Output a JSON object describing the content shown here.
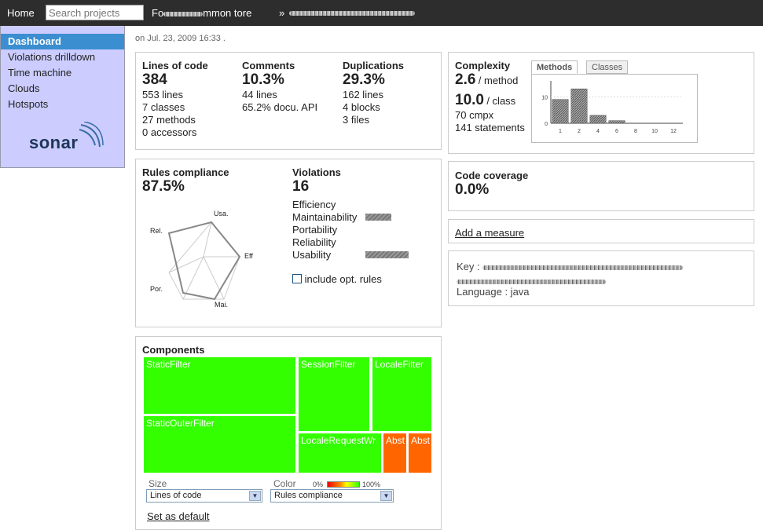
{
  "topbar": {
    "home": "Home",
    "search_placeholder": "Search projects",
    "breadcrumb_visible": "Fo",
    "breadcrumb_tail": "mmon tore",
    "separator": "»"
  },
  "sidebar": {
    "items": [
      {
        "label": "Dashboard",
        "active": true
      },
      {
        "label": "Violations drilldown"
      },
      {
        "label": "Time machine"
      },
      {
        "label": "Clouds"
      },
      {
        "label": "Hotspots"
      }
    ],
    "logo": "sonar"
  },
  "date": "on Jul. 23, 2009 16:33 .",
  "size": {
    "loc_title": "Lines of code",
    "loc_value": "384",
    "loc_lines": "553 lines",
    "loc_classes": "7 classes",
    "loc_methods": "27 methods",
    "loc_accessors": "0 accessors",
    "comments_title": "Comments",
    "comments_value": "10.3%",
    "comments_lines": "44 lines",
    "comments_api": "65.2% docu. API",
    "dup_title": "Duplications",
    "dup_value": "29.3%",
    "dup_lines": "162 lines",
    "dup_blocks": "4 blocks",
    "dup_files": "3 files"
  },
  "complexity": {
    "title": "Complexity",
    "per_method": "2.6",
    "per_method_unit": "/ method",
    "per_class": "10.0",
    "per_class_unit": "/ class",
    "cmpx": "70 cmpx",
    "statements": "141 statements",
    "tabs": [
      "Methods",
      "Classes"
    ],
    "accent_hatch": "#888888"
  },
  "chart_data": {
    "type": "bar",
    "categories": [
      "1",
      "2",
      "4",
      "6",
      "8",
      "10",
      "12"
    ],
    "values": [
      9,
      13,
      3,
      1,
      0,
      0,
      0
    ],
    "ylabel": "",
    "xlabel": "",
    "yticks": [
      "0",
      "10"
    ],
    "ylim": [
      0,
      16
    ]
  },
  "coverage": {
    "title": "Code coverage",
    "value": "0.0%"
  },
  "add_measure": "Add a measure",
  "project_info": {
    "key_label": "Key :",
    "language_label": "Language : java"
  },
  "rules": {
    "title": "Rules compliance",
    "value": "87.5%",
    "radar_labels": [
      "Usa.",
      "Eff",
      "Mai.",
      "Por.",
      "Rel."
    ]
  },
  "violations": {
    "title": "Violations",
    "value": "16",
    "categories": [
      {
        "label": "Efficiency",
        "count": 0
      },
      {
        "label": "Maintainability",
        "count": 4
      },
      {
        "label": "Portability",
        "count": 0
      },
      {
        "label": "Reliability",
        "count": 0
      },
      {
        "label": "Usability",
        "count": 7
      }
    ],
    "include_opt": "include opt. rules"
  },
  "components": {
    "title": "Components",
    "cells": [
      "StaticFilter",
      "StaticOuterFilter",
      "SessionFilter",
      "LocaleFilter",
      "LocaleRequestWr",
      "Abst",
      "Abst"
    ],
    "colors": {
      "good": "#33ff00",
      "bad": "#ff6600"
    },
    "size_label": "Size",
    "size_value": "Lines of code",
    "color_label": "Color",
    "color_value": "Rules compliance",
    "scale_min": "0%",
    "scale_max": "100%",
    "set_default": "Set as default"
  }
}
